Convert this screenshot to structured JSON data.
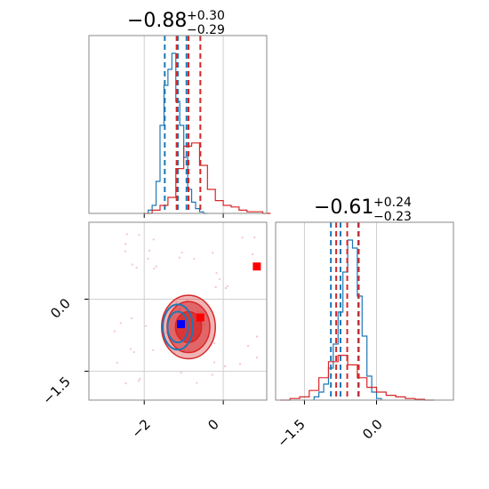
{
  "chart_data": [
    {
      "type": "histogram",
      "panel": "top-left marginal",
      "title": {
        "value": "−0.88",
        "plus": "+0.30",
        "minus": "−0.29"
      },
      "xlim": [
        -3.4,
        1.1
      ],
      "x_ticks": [
        -2,
        0
      ],
      "grid": true,
      "series": [
        {
          "color": "#1f77b4",
          "bins_x": [
            -1.9,
            -1.8,
            -1.7,
            -1.6,
            -1.5,
            -1.4,
            -1.3,
            -1.2,
            -1.1,
            -1.0,
            -0.9,
            -0.8,
            -0.7,
            -0.6,
            -0.5
          ],
          "counts": [
            0.02,
            0.05,
            0.2,
            0.55,
            0.8,
            0.9,
            1.0,
            0.7,
            0.55,
            0.35,
            0.15,
            0.07,
            0.03,
            0.01,
            0.0
          ],
          "quantile_lines": [
            -1.48,
            -1.15,
            -0.93
          ]
        },
        {
          "color": "#d62728",
          "bins_x": [
            -2.0,
            -1.8,
            -1.6,
            -1.4,
            -1.2,
            -1.0,
            -0.8,
            -0.6,
            -0.4,
            -0.2,
            0.0,
            0.2,
            0.4,
            0.6,
            0.8,
            1.0
          ],
          "counts": [
            0.0,
            0.02,
            0.05,
            0.1,
            0.28,
            0.42,
            0.44,
            0.3,
            0.15,
            0.08,
            0.05,
            0.04,
            0.02,
            0.01,
            0.01,
            0.0
          ],
          "quantile_lines": [
            -1.18,
            -0.88,
            -0.58
          ]
        }
      ]
    },
    {
      "type": "scatter",
      "panel": "bottom-left 2D",
      "xlim": [
        -3.4,
        1.1
      ],
      "ylim": [
        -2.1,
        1.6
      ],
      "x_ticks": [
        -2,
        0
      ],
      "y_ticks": [
        0.0,
        -1.5
      ],
      "x_tick_labels": [
        "−2",
        "0"
      ],
      "y_tick_labels": [
        "0.0",
        "−1.5"
      ],
      "grid": true,
      "markers": [
        {
          "x": -0.58,
          "y": -0.38,
          "color": "#ff0000",
          "shape": "square"
        },
        {
          "x": -1.07,
          "y": -0.52,
          "color": "#0000ff",
          "shape": "square"
        },
        {
          "x": 0.85,
          "y": 0.68,
          "color": "#ff0000",
          "shape": "square"
        }
      ],
      "contours": [
        {
          "color": "#d62728",
          "center_x": -0.88,
          "center_y": -0.58,
          "levels_rx": [
            0.68,
            0.54,
            0.33
          ],
          "levels_ry": [
            0.66,
            0.53,
            0.32
          ]
        },
        {
          "color": "#1f77b4",
          "center_x": -1.15,
          "center_y": -0.58,
          "levels_rx": [
            0.38,
            0.26
          ],
          "levels_ry": [
            0.47,
            0.32
          ]
        }
      ]
    },
    {
      "type": "histogram",
      "panel": "bottom-right marginal",
      "title": {
        "value": "−0.61",
        "plus": "+0.24",
        "minus": "−0.23"
      },
      "xlim": [
        -2.1,
        1.6
      ],
      "x_ticks": [
        -1.5,
        0.0
      ],
      "x_tick_labels": [
        "−1.5",
        "0.0"
      ],
      "grid": true,
      "series": [
        {
          "color": "#1f77b4",
          "bins_x": [
            -1.3,
            -1.2,
            -1.1,
            -1.0,
            -0.9,
            -0.8,
            -0.7,
            -0.6,
            -0.5,
            -0.4,
            -0.3,
            -0.2,
            -0.1,
            0.0
          ],
          "counts": [
            0.02,
            0.05,
            0.1,
            0.2,
            0.35,
            0.55,
            0.8,
            1.0,
            0.95,
            0.65,
            0.4,
            0.15,
            0.05,
            0.01
          ],
          "quantile_lines": [
            -0.95,
            -0.75,
            -0.38
          ]
        },
        {
          "color": "#d62728",
          "bins_x": [
            -2.0,
            -1.8,
            -1.6,
            -1.4,
            -1.2,
            -1.0,
            -0.8,
            -0.6,
            -0.4,
            -0.2,
            0.0,
            0.2,
            0.4,
            0.6,
            0.8,
            1.0
          ],
          "counts": [
            0.0,
            0.01,
            0.02,
            0.06,
            0.14,
            0.24,
            0.28,
            0.22,
            0.14,
            0.08,
            0.05,
            0.03,
            0.02,
            0.01,
            0.005,
            0.0
          ],
          "quantile_lines": [
            -0.84,
            -0.61,
            -0.37
          ]
        }
      ]
    }
  ]
}
